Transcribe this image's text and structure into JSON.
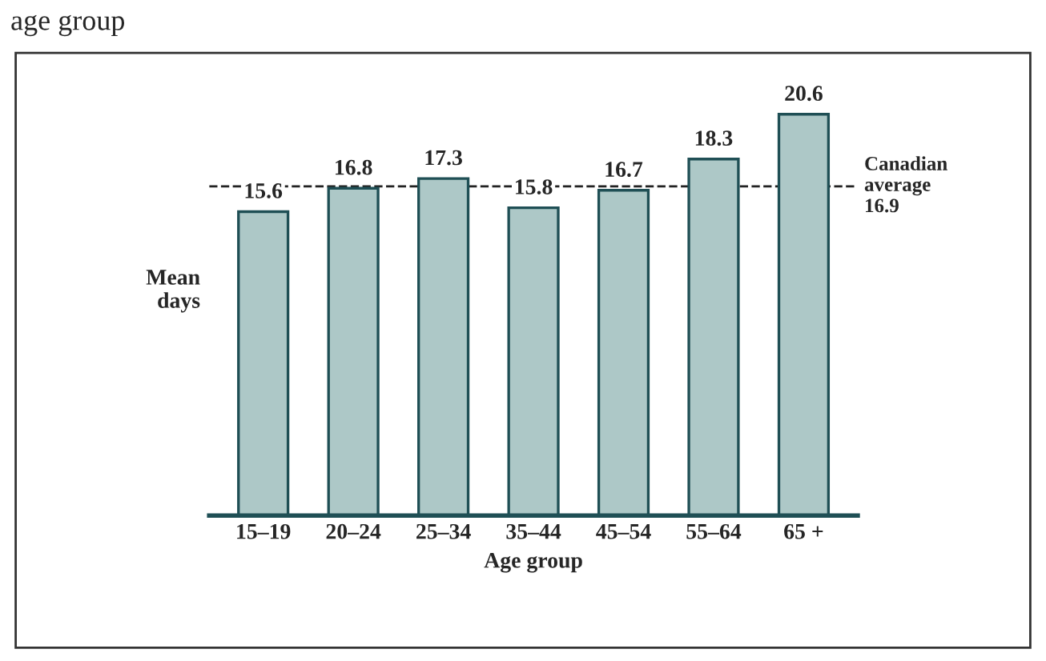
{
  "chart_data": {
    "type": "bar",
    "title": "age group",
    "xlabel": "Age group",
    "ylabel": "Mean days",
    "categories": [
      "15–19",
      "20–24",
      "25–34",
      "35–44",
      "45–54",
      "55–64",
      "65 +"
    ],
    "values": [
      15.6,
      16.8,
      17.3,
      15.8,
      16.7,
      18.3,
      20.6
    ],
    "color": "#a9cccb",
    "data_labels": true,
    "grid": false,
    "legend": false,
    "ref_lines": [
      {
        "axis": "y",
        "value": 16.9,
        "label": "Canadian\naverage\n16.9",
        "color": "#222222",
        "line_style": "dashed"
      }
    ]
  }
}
